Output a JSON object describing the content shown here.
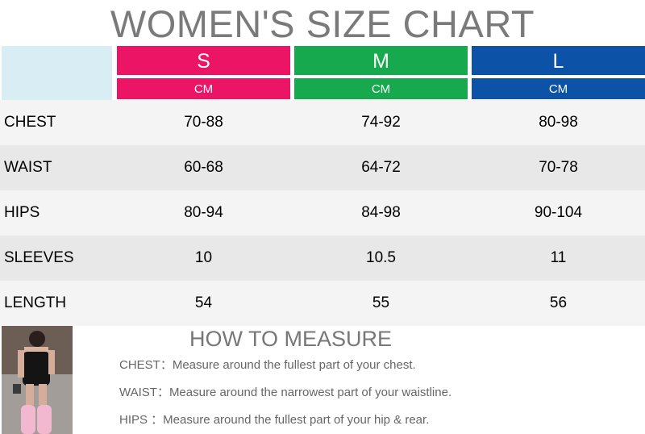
{
  "title": "WOMEN'S SIZE CHART",
  "sizes": [
    {
      "name": "S",
      "unit": "CM",
      "color": "#ec1565"
    },
    {
      "name": "M",
      "unit": "CM",
      "color": "#16a94e"
    },
    {
      "name": "L",
      "unit": "CM",
      "color": "#0c53a8"
    }
  ],
  "rows": [
    {
      "label": "CHEST",
      "values": [
        "70-88",
        "74-92",
        "80-98"
      ]
    },
    {
      "label": "WAIST",
      "values": [
        "60-68",
        "64-72",
        "70-78"
      ]
    },
    {
      "label": "HIPS",
      "values": [
        "80-94",
        "84-98",
        "90-104"
      ]
    },
    {
      "label": "SLEEVES",
      "values": [
        "10",
        "10.5",
        "11"
      ]
    },
    {
      "label": "LENGTH",
      "values": [
        "54",
        "55",
        "56"
      ]
    }
  ],
  "how_to_measure": {
    "title": "HOW TO MEASURE",
    "instructions": [
      "CHEST：Measure around the fullest part of your chest.",
      "WAIST：Measure around the narrowest part of your waistline.",
      "HIPS  ：Measure around the fullest part of your hip & rear."
    ]
  },
  "photo": {
    "icon": "model-photo"
  }
}
